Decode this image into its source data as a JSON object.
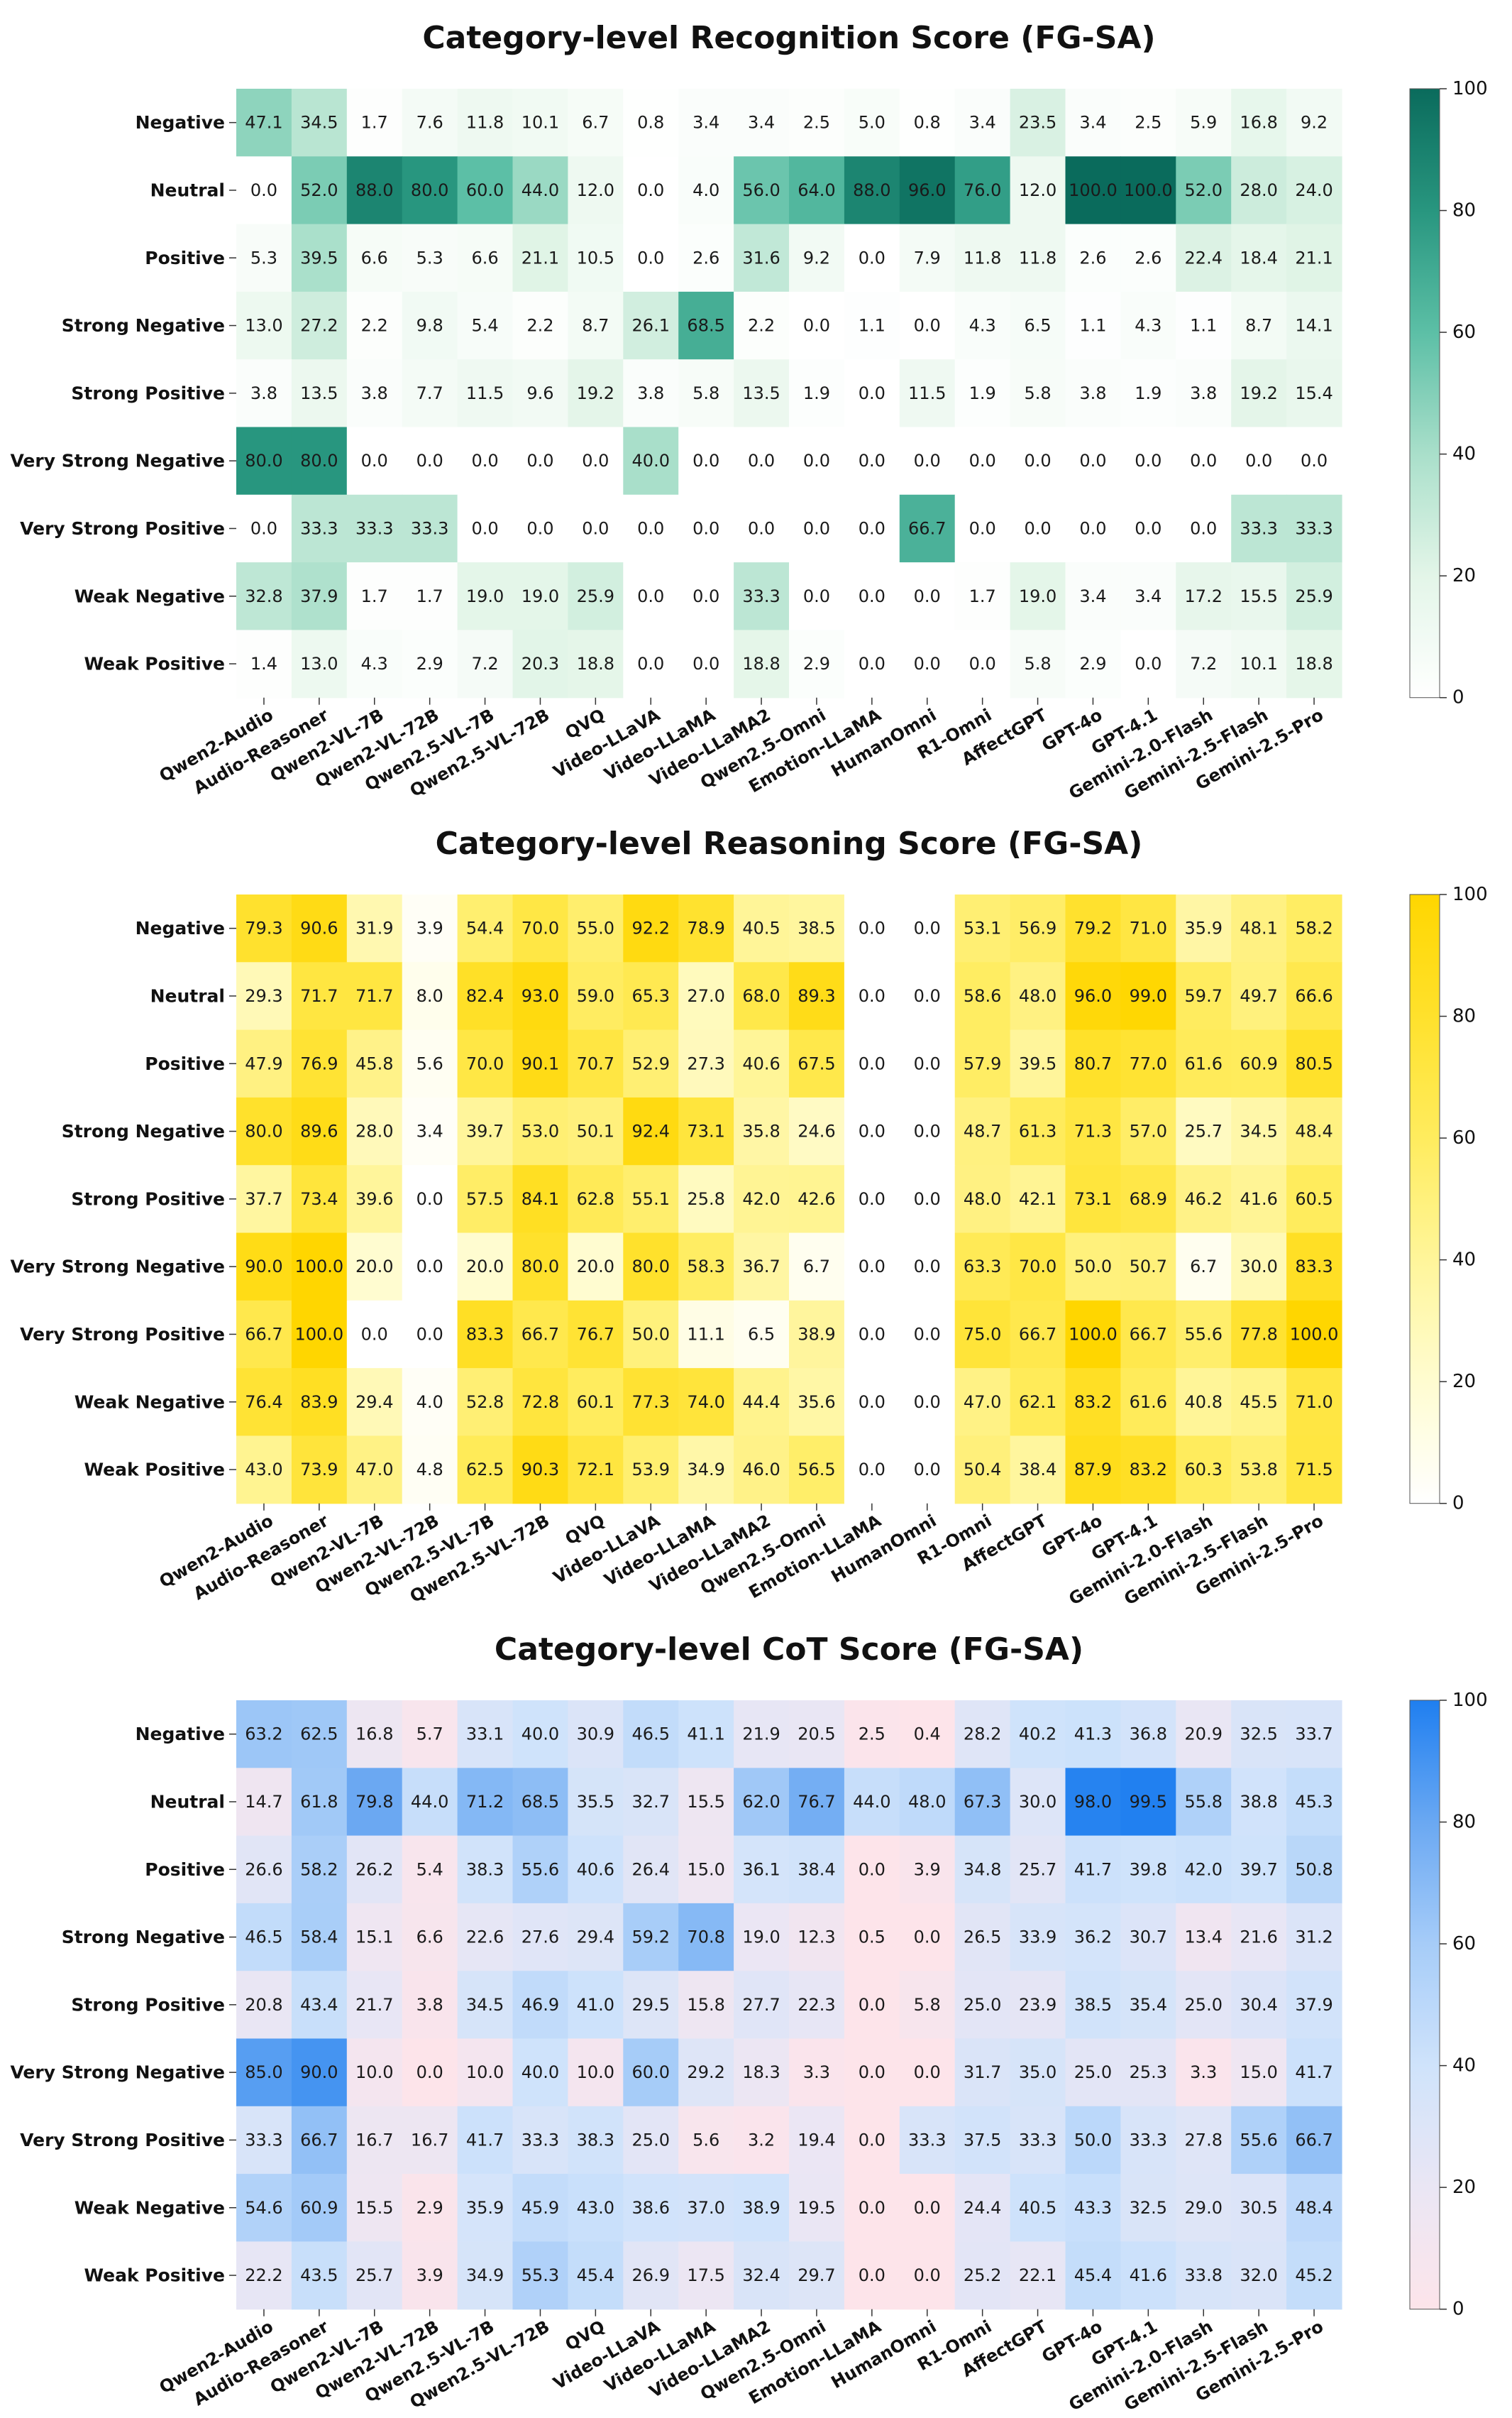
{
  "charts": [
    {
      "title": "Category-level Recognition Score (FG-SA)",
      "colormap": [
        "#ffffff",
        "#e3f5e8",
        "#a9dfca",
        "#5cbfa6",
        "#28967f",
        "#0a6b5c"
      ],
      "cells": [
        [
          47.1,
          34.5,
          1.7,
          7.6,
          11.8,
          10.1,
          6.7,
          0.8,
          3.4,
          3.4,
          2.5,
          5.0,
          0.8,
          3.4,
          23.5,
          3.4,
          2.5,
          5.9,
          16.8,
          9.2
        ],
        [
          0.0,
          52.0,
          88.0,
          80.0,
          60.0,
          44.0,
          12.0,
          0.0,
          4.0,
          56.0,
          64.0,
          88.0,
          96.0,
          76.0,
          12.0,
          100.0,
          100.0,
          52.0,
          28.0,
          24.0
        ],
        [
          5.3,
          39.5,
          6.6,
          5.3,
          6.6,
          21.1,
          10.5,
          0.0,
          2.6,
          31.6,
          9.2,
          0.0,
          7.9,
          11.8,
          11.8,
          2.6,
          2.6,
          22.4,
          18.4,
          21.1
        ],
        [
          13.0,
          27.2,
          2.2,
          9.8,
          5.4,
          2.2,
          8.7,
          26.1,
          68.5,
          2.2,
          0.0,
          1.1,
          0.0,
          4.3,
          6.5,
          1.1,
          4.3,
          1.1,
          8.7,
          14.1
        ],
        [
          3.8,
          13.5,
          3.8,
          7.7,
          11.5,
          9.6,
          19.2,
          3.8,
          5.8,
          13.5,
          1.9,
          0.0,
          11.5,
          1.9,
          5.8,
          3.8,
          1.9,
          3.8,
          19.2,
          15.4
        ],
        [
          80.0,
          80.0,
          0.0,
          0.0,
          0.0,
          0.0,
          0.0,
          40.0,
          0.0,
          0.0,
          0.0,
          0.0,
          0.0,
          0.0,
          0.0,
          0.0,
          0.0,
          0.0,
          0.0,
          0.0
        ],
        [
          0.0,
          33.3,
          33.3,
          33.3,
          0.0,
          0.0,
          0.0,
          0.0,
          0.0,
          0.0,
          0.0,
          0.0,
          66.7,
          0.0,
          0.0,
          0.0,
          0.0,
          0.0,
          33.3,
          33.3
        ],
        [
          32.8,
          37.9,
          1.7,
          1.7,
          19.0,
          19.0,
          25.9,
          0.0,
          0.0,
          33.3,
          0.0,
          0.0,
          0.0,
          1.7,
          19.0,
          3.4,
          3.4,
          17.2,
          15.5,
          25.9
        ],
        [
          1.4,
          13.0,
          4.3,
          2.9,
          7.2,
          20.3,
          18.8,
          0.0,
          0.0,
          18.8,
          2.9,
          0.0,
          0.0,
          0.0,
          5.8,
          2.9,
          0.0,
          7.2,
          10.1,
          18.8
        ]
      ]
    },
    {
      "title": "Category-level Reasoning Score (FG-SA)",
      "colormap": [
        "#ffffff",
        "#fffcd0",
        "#fff59a",
        "#ffec5e",
        "#ffe12c",
        "#ffd600"
      ],
      "cells": [
        [
          79.3,
          90.6,
          31.9,
          3.9,
          54.4,
          70.0,
          55.0,
          92.2,
          78.9,
          40.5,
          38.5,
          0.0,
          0.0,
          53.1,
          56.9,
          79.2,
          71.0,
          35.9,
          48.1,
          58.2
        ],
        [
          29.3,
          71.7,
          71.7,
          8.0,
          82.4,
          93.0,
          59.0,
          65.3,
          27.0,
          68.0,
          89.3,
          0.0,
          0.0,
          58.6,
          48.0,
          96.0,
          99.0,
          59.7,
          49.7,
          66.6
        ],
        [
          47.9,
          76.9,
          45.8,
          5.6,
          70.0,
          90.1,
          70.7,
          52.9,
          27.3,
          40.6,
          67.5,
          0.0,
          0.0,
          57.9,
          39.5,
          80.7,
          77.0,
          61.6,
          60.9,
          80.5
        ],
        [
          80.0,
          89.6,
          28.0,
          3.4,
          39.7,
          53.0,
          50.1,
          92.4,
          73.1,
          35.8,
          24.6,
          0.0,
          0.0,
          48.7,
          61.3,
          71.3,
          57.0,
          25.7,
          34.5,
          48.4
        ],
        [
          37.7,
          73.4,
          39.6,
          0.0,
          57.5,
          84.1,
          62.8,
          55.1,
          25.8,
          42.0,
          42.6,
          0.0,
          0.0,
          48.0,
          42.1,
          73.1,
          68.9,
          46.2,
          41.6,
          60.5
        ],
        [
          90.0,
          100.0,
          20.0,
          0.0,
          20.0,
          80.0,
          20.0,
          80.0,
          58.3,
          36.7,
          6.7,
          0.0,
          0.0,
          63.3,
          70.0,
          50.0,
          50.7,
          6.7,
          30.0,
          83.3
        ],
        [
          66.7,
          100.0,
          0.0,
          0.0,
          83.3,
          66.7,
          76.7,
          50.0,
          11.1,
          6.5,
          38.9,
          0.0,
          0.0,
          75.0,
          66.7,
          100.0,
          66.7,
          55.6,
          77.8,
          100.0
        ],
        [
          76.4,
          83.9,
          29.4,
          4.0,
          52.8,
          72.8,
          60.1,
          77.3,
          74.0,
          44.4,
          35.6,
          0.0,
          0.0,
          47.0,
          62.1,
          83.2,
          61.6,
          40.8,
          45.5,
          71.0
        ],
        [
          43.0,
          73.9,
          47.0,
          4.8,
          62.5,
          90.3,
          72.1,
          53.9,
          34.9,
          46.0,
          56.5,
          0.0,
          0.0,
          50.4,
          38.4,
          87.9,
          83.2,
          60.3,
          53.8,
          71.5
        ]
      ]
    },
    {
      "title": "Category-level CoT Score (FG-SA)",
      "colormap": [
        "#fde4ea",
        "#eae6f4",
        "#cfe3fb",
        "#a6ccf8",
        "#6aa8f2",
        "#1f7ff0"
      ],
      "cells": [
        [
          63.2,
          62.5,
          16.8,
          5.7,
          33.1,
          40.0,
          30.9,
          46.5,
          41.1,
          21.9,
          20.5,
          2.5,
          0.4,
          28.2,
          40.2,
          41.3,
          36.8,
          20.9,
          32.5,
          33.7
        ],
        [
          14.7,
          61.8,
          79.8,
          44.0,
          71.2,
          68.5,
          35.5,
          32.7,
          15.5,
          62.0,
          76.7,
          44.0,
          48.0,
          67.3,
          30.0,
          98.0,
          99.5,
          55.8,
          38.8,
          45.3
        ],
        [
          26.6,
          58.2,
          26.2,
          5.4,
          38.3,
          55.6,
          40.6,
          26.4,
          15.0,
          36.1,
          38.4,
          0.0,
          3.9,
          34.8,
          25.7,
          41.7,
          39.8,
          42.0,
          39.7,
          50.8
        ],
        [
          46.5,
          58.4,
          15.1,
          6.6,
          22.6,
          27.6,
          29.4,
          59.2,
          70.8,
          19.0,
          12.3,
          0.5,
          0.0,
          26.5,
          33.9,
          36.2,
          30.7,
          13.4,
          21.6,
          31.2
        ],
        [
          20.8,
          43.4,
          21.7,
          3.8,
          34.5,
          46.9,
          41.0,
          29.5,
          15.8,
          27.7,
          22.3,
          0.0,
          5.8,
          25.0,
          23.9,
          38.5,
          35.4,
          25.0,
          30.4,
          37.9
        ],
        [
          85.0,
          90.0,
          10.0,
          0.0,
          10.0,
          40.0,
          10.0,
          60.0,
          29.2,
          18.3,
          3.3,
          0.0,
          0.0,
          31.7,
          35.0,
          25.0,
          25.3,
          3.3,
          15.0,
          41.7
        ],
        [
          33.3,
          66.7,
          16.7,
          16.7,
          41.7,
          33.3,
          38.3,
          25.0,
          5.6,
          3.2,
          19.4,
          0.0,
          33.3,
          37.5,
          33.3,
          50.0,
          33.3,
          27.8,
          55.6,
          66.7
        ],
        [
          54.6,
          60.9,
          15.5,
          2.9,
          35.9,
          45.9,
          43.0,
          38.6,
          37.0,
          38.9,
          19.5,
          0.0,
          0.0,
          24.4,
          40.5,
          43.3,
          32.5,
          29.0,
          30.5,
          48.4
        ],
        [
          22.2,
          43.5,
          25.7,
          3.9,
          34.9,
          55.3,
          45.4,
          26.9,
          17.5,
          32.4,
          29.7,
          0.0,
          0.0,
          25.2,
          22.1,
          45.4,
          41.6,
          33.8,
          32.0,
          45.2
        ]
      ]
    }
  ],
  "chart_data": [
    {
      "type": "heatmap",
      "title": "Category-level Recognition Score (FG-SA)",
      "rows": [
        "Negative",
        "Neutral",
        "Positive",
        "Strong Negative",
        "Strong Positive",
        "Very Strong Negative",
        "Very Strong Positive",
        "Weak Negative",
        "Weak Positive"
      ],
      "columns": [
        "Qwen2-Audio",
        "Audio-Reasoner",
        "Qwen2-VL-7B",
        "Qwen2-VL-72B",
        "Qwen2.5-VL-7B",
        "Qwen2.5-VL-72B",
        "QVQ",
        "Video-LLaVA",
        "Video-LLaMA",
        "Video-LLaMA2",
        "Qwen2.5-Omni",
        "Emotion-LLaMA",
        "HumanOmni",
        "R1-Omni",
        "AffectGPT",
        "GPT-4o",
        "GPT-4.1",
        "Gemini-2.0-Flash",
        "Gemini-2.5-Flash",
        "Gemini-2.5-Pro"
      ],
      "vmin": 0,
      "vmax": 100,
      "colorbar_ticks": [
        "0",
        "20",
        "40",
        "60",
        "80",
        "100"
      ]
    },
    {
      "type": "heatmap",
      "title": "Category-level Reasoning Score (FG-SA)",
      "rows": [
        "Negative",
        "Neutral",
        "Positive",
        "Strong Negative",
        "Strong Positive",
        "Very Strong Negative",
        "Very Strong Positive",
        "Weak Negative",
        "Weak Positive"
      ],
      "columns": [
        "Qwen2-Audio",
        "Audio-Reasoner",
        "Qwen2-VL-7B",
        "Qwen2-VL-72B",
        "Qwen2.5-VL-7B",
        "Qwen2.5-VL-72B",
        "QVQ",
        "Video-LLaVA",
        "Video-LLaMA",
        "Video-LLaMA2",
        "Qwen2.5-Omni",
        "Emotion-LLaMA",
        "HumanOmni",
        "R1-Omni",
        "AffectGPT",
        "GPT-4o",
        "GPT-4.1",
        "Gemini-2.0-Flash",
        "Gemini-2.5-Flash",
        "Gemini-2.5-Pro"
      ],
      "vmin": 0,
      "vmax": 100,
      "colorbar_ticks": [
        "0",
        "20",
        "40",
        "60",
        "80",
        "100"
      ]
    },
    {
      "type": "heatmap",
      "title": "Category-level CoT Score (FG-SA)",
      "rows": [
        "Negative",
        "Neutral",
        "Positive",
        "Strong Negative",
        "Strong Positive",
        "Very Strong Negative",
        "Very Strong Positive",
        "Weak Negative",
        "Weak Positive"
      ],
      "columns": [
        "Qwen2-Audio",
        "Audio-Reasoner",
        "Qwen2-VL-7B",
        "Qwen2-VL-72B",
        "Qwen2.5-VL-7B",
        "Qwen2.5-VL-72B",
        "QVQ",
        "Video-LLaVA",
        "Video-LLaMA",
        "Video-LLaMA2",
        "Qwen2.5-Omni",
        "Emotion-LLaMA",
        "HumanOmni",
        "R1-Omni",
        "AffectGPT",
        "GPT-4o",
        "GPT-4.1",
        "Gemini-2.0-Flash",
        "Gemini-2.5-Flash",
        "Gemini-2.5-Pro"
      ],
      "vmin": 0,
      "vmax": 100,
      "colorbar_ticks": [
        "0",
        "20",
        "40",
        "60",
        "80",
        "100"
      ]
    }
  ]
}
